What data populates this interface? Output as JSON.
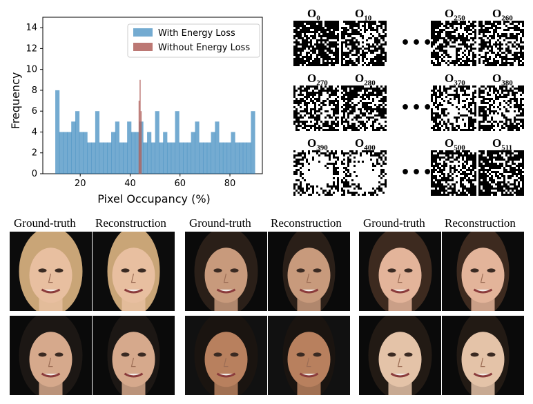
{
  "chart_data": {
    "type": "bar",
    "title": "",
    "xlabel": "Pixel Occupancy (%)",
    "ylabel": "Frequency",
    "xlim": [
      5,
      93
    ],
    "ylim": [
      0,
      15
    ],
    "xticks": [
      20,
      40,
      60,
      80
    ],
    "yticks": [
      0,
      2,
      4,
      6,
      8,
      10,
      12,
      14
    ],
    "bin_width": 1.6,
    "legend_position": "upper-center",
    "series": [
      {
        "name": "With Energy Loss",
        "color": "#1f77b4",
        "bins": [
          {
            "x": 10,
            "y": 8
          },
          {
            "x": 11.6,
            "y": 4
          },
          {
            "x": 13.2,
            "y": 4
          },
          {
            "x": 14.8,
            "y": 4
          },
          {
            "x": 16.4,
            "y": 5
          },
          {
            "x": 18,
            "y": 6
          },
          {
            "x": 19.6,
            "y": 4
          },
          {
            "x": 21.2,
            "y": 4
          },
          {
            "x": 22.8,
            "y": 3
          },
          {
            "x": 24.4,
            "y": 3
          },
          {
            "x": 26,
            "y": 6
          },
          {
            "x": 27.6,
            "y": 3
          },
          {
            "x": 29.2,
            "y": 3
          },
          {
            "x": 30.8,
            "y": 3
          },
          {
            "x": 32.4,
            "y": 4
          },
          {
            "x": 34,
            "y": 5
          },
          {
            "x": 35.6,
            "y": 3
          },
          {
            "x": 37.2,
            "y": 3
          },
          {
            "x": 38.8,
            "y": 5
          },
          {
            "x": 40.4,
            "y": 4
          },
          {
            "x": 42,
            "y": 4
          },
          {
            "x": 43.6,
            "y": 5
          },
          {
            "x": 45.2,
            "y": 3
          },
          {
            "x": 46.8,
            "y": 4
          },
          {
            "x": 48.4,
            "y": 3
          },
          {
            "x": 50,
            "y": 6
          },
          {
            "x": 51.6,
            "y": 3
          },
          {
            "x": 53.2,
            "y": 4
          },
          {
            "x": 54.8,
            "y": 3
          },
          {
            "x": 56.4,
            "y": 3
          },
          {
            "x": 58,
            "y": 6
          },
          {
            "x": 59.6,
            "y": 3
          },
          {
            "x": 61.2,
            "y": 3
          },
          {
            "x": 62.8,
            "y": 3
          },
          {
            "x": 64.4,
            "y": 4
          },
          {
            "x": 66,
            "y": 5
          },
          {
            "x": 67.6,
            "y": 3
          },
          {
            "x": 69.2,
            "y": 3
          },
          {
            "x": 70.8,
            "y": 3
          },
          {
            "x": 72.4,
            "y": 4
          },
          {
            "x": 74,
            "y": 5
          },
          {
            "x": 75.6,
            "y": 3
          },
          {
            "x": 77.2,
            "y": 3
          },
          {
            "x": 78.8,
            "y": 3
          },
          {
            "x": 80.4,
            "y": 4
          },
          {
            "x": 82,
            "y": 3
          },
          {
            "x": 83.6,
            "y": 3
          },
          {
            "x": 85.2,
            "y": 3
          },
          {
            "x": 86.8,
            "y": 3
          },
          {
            "x": 88.4,
            "y": 6
          }
        ]
      },
      {
        "name": "Without Energy Loss",
        "color": "#b0605c",
        "bins": [
          {
            "x": 43.4,
            "y": 7
          },
          {
            "x": 43.8,
            "y": 9
          },
          {
            "x": 44.2,
            "y": 6
          }
        ]
      }
    ]
  },
  "channel_maps": {
    "rows": [
      {
        "left": [
          {
            "base": "O",
            "sub": "0"
          },
          {
            "base": "O",
            "sub": "10"
          }
        ],
        "right": [
          {
            "base": "O",
            "sub": "250"
          },
          {
            "base": "O",
            "sub": "260"
          }
        ]
      },
      {
        "left": [
          {
            "base": "O",
            "sub": "270"
          },
          {
            "base": "O",
            "sub": "280"
          }
        ],
        "right": [
          {
            "base": "O",
            "sub": "370"
          },
          {
            "base": "O",
            "sub": "380"
          }
        ]
      },
      {
        "left": [
          {
            "base": "O",
            "sub": "390"
          },
          {
            "base": "O",
            "sub": "400"
          }
        ],
        "right": [
          {
            "base": "O",
            "sub": "500"
          },
          {
            "base": "O",
            "sub": "511"
          }
        ]
      }
    ],
    "ellipsis": "•••"
  },
  "faces": {
    "ground_truth_label": "Ground-truth",
    "reconstruction_label": "Reconstruction",
    "panels": [
      {
        "skin": "#e8bfa0",
        "hair": "#c9a577",
        "bg": "#0c0c0c"
      },
      {
        "skin": "#c89a7c",
        "hair": "#2a1f18",
        "bg": "#0a0a0a"
      },
      {
        "skin": "#e3b49a",
        "hair": "#3d2a1f",
        "bg": "#0b0b0b"
      },
      {
        "skin": "#d6a98c",
        "hair": "#1c1714",
        "bg": "#0a0a0a"
      },
      {
        "skin": "#b8805e",
        "hair": "#1a1410",
        "bg": "#111111"
      },
      {
        "skin": "#e4c3a8",
        "hair": "#221a14",
        "bg": "#0a0a0a"
      }
    ]
  }
}
